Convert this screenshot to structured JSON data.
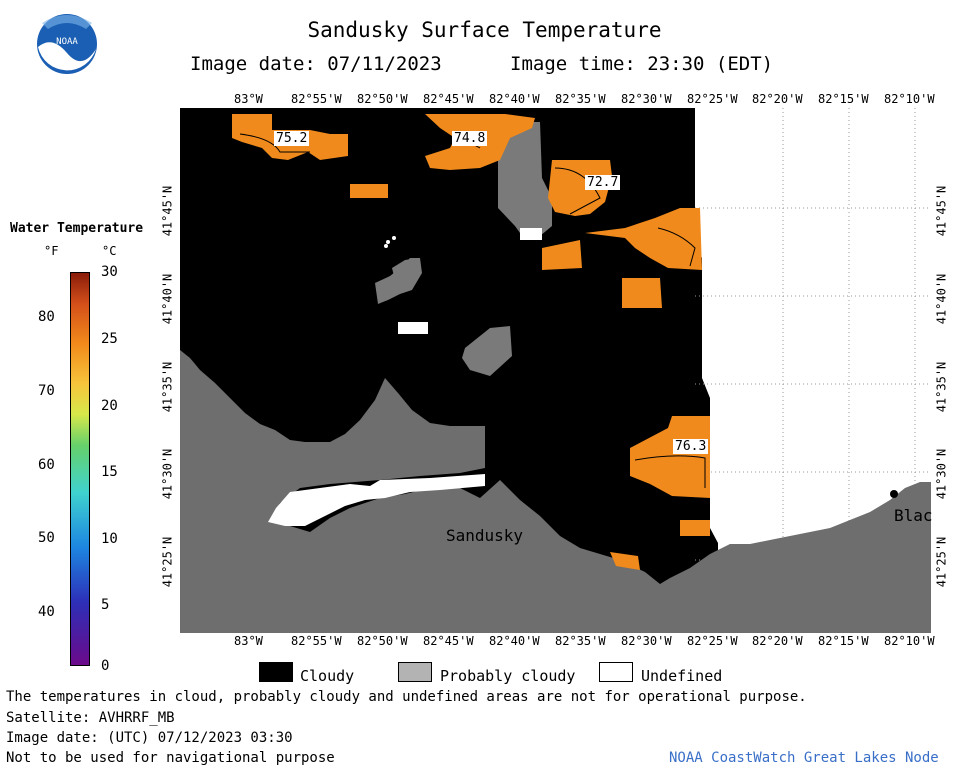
{
  "title": "Sandusky Surface Temperature",
  "image_date_local": "Image date: 07/11/2023",
  "image_time_local": "Image time: 23:30 (EDT)",
  "logo_text": "NOAA",
  "colorbar": {
    "title": "Water Temperature",
    "unit_f": "°F",
    "unit_c": "°C",
    "f_ticks": [
      "80",
      "70",
      "60",
      "50",
      "40"
    ],
    "c_ticks": [
      "30",
      "25",
      "20",
      "15",
      "10",
      "5",
      "0"
    ]
  },
  "lon_labels": [
    "83°W",
    "82°55'W",
    "82°50'W",
    "82°45'W",
    "82°40'W",
    "82°35'W",
    "82°30'W",
    "82°25'W",
    "82°20'W",
    "82°15'W",
    "82°10'W"
  ],
  "lat_labels": [
    "41°45'N",
    "41°40'N",
    "41°35'N",
    "41°30'N",
    "41°25'N"
  ],
  "temperature_labels": [
    "75.2",
    "74.8",
    "72.7",
    "76.3"
  ],
  "place_labels": {
    "sandusky": "Sandusky",
    "east": "Blac"
  },
  "legend": {
    "cloudy": "Cloudy",
    "probably_cloudy": "Probably cloudy",
    "undefined": "Undefined"
  },
  "footer": {
    "note": "The temperatures in cloud, probably cloudy and undefined areas are not for operational purpose.",
    "satellite": "Satellite: AVHRRF_MB",
    "utc_date": "Image date: (UTC) 07/12/2023  03:30",
    "nav": "Not to be used for navigational purpose",
    "credit": "NOAA CoastWatch Great Lakes Node"
  },
  "colors": {
    "cloudy": "#000000",
    "probably_cloudy": "#b3b3b3",
    "land": "#6e6e6e",
    "undefined": "#ffffff",
    "water_warm": "#f08a1c"
  }
}
